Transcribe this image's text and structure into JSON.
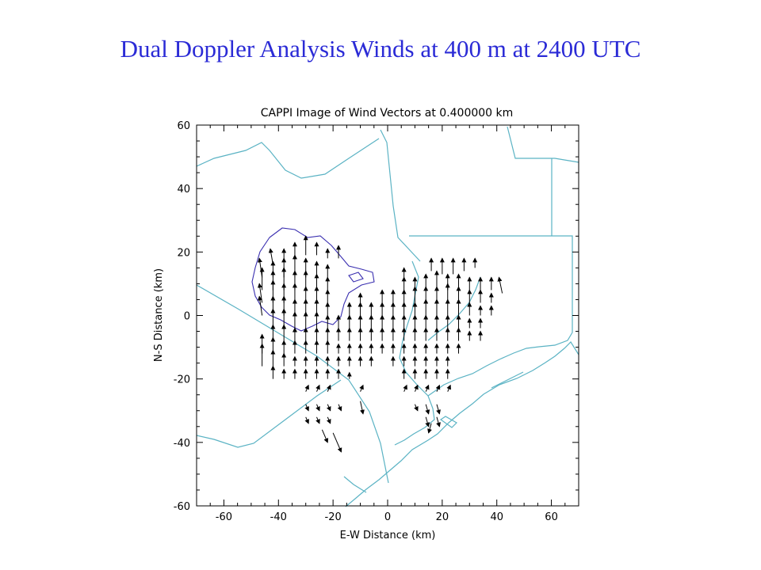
{
  "slide": {
    "title": "Dual Doppler Analysis  Winds at 400 m at 2400 UTC"
  },
  "chart_data": {
    "type": "scatter",
    "title": "CAPPI Image of Wind Vectors at  0.400000 km",
    "xlabel": "E-W Distance (km)",
    "ylabel": "N-S Distance (km)",
    "xlim": [
      -70,
      70
    ],
    "ylim": [
      -60,
      60
    ],
    "xticks": [
      -60,
      -40,
      -20,
      0,
      20,
      40,
      60
    ],
    "yticks": [
      -60,
      -40,
      -20,
      0,
      20,
      40,
      60
    ],
    "xtick_labels": [
      "-60",
      "-40",
      "-20",
      "0",
      "20",
      "40",
      "60"
    ],
    "ytick_labels": [
      "-60",
      "-40",
      "-20",
      "0",
      "20",
      "40",
      "60"
    ],
    "grid": false,
    "vector_color": "#000000",
    "coast_color": "#5bb3c4",
    "outline_color": "#3a2fb0",
    "wind_vectors": [
      {
        "x": -42,
        "y": 16,
        "u": -0.5,
        "v": 2.5
      },
      {
        "x": -38,
        "y": 17,
        "u": 0,
        "v": 2
      },
      {
        "x": -34,
        "y": 18,
        "u": 0,
        "v": 2.5
      },
      {
        "x": -30,
        "y": 19,
        "u": 0,
        "v": 3
      },
      {
        "x": -26,
        "y": 19,
        "u": 0,
        "v": 2
      },
      {
        "x": -22,
        "y": 18,
        "u": 0,
        "v": 1.5
      },
      {
        "x": -18,
        "y": 18,
        "u": 0,
        "v": 2
      },
      {
        "x": -46,
        "y": 12,
        "u": -0.5,
        "v": 3
      },
      {
        "x": -42,
        "y": 12,
        "u": 0,
        "v": 2.5
      },
      {
        "x": -38,
        "y": 12,
        "u": 0,
        "v": 3
      },
      {
        "x": -34,
        "y": 12,
        "u": 0,
        "v": 3.5
      },
      {
        "x": -30,
        "y": 12,
        "u": 0,
        "v": 3
      },
      {
        "x": -26,
        "y": 12,
        "u": 0,
        "v": 2.5
      },
      {
        "x": -22,
        "y": 12,
        "u": 0,
        "v": 2
      },
      {
        "x": 6,
        "y": 12,
        "u": 0,
        "v": 1.5
      },
      {
        "x": 16,
        "y": 14,
        "u": 0,
        "v": 2
      },
      {
        "x": 20,
        "y": 13,
        "u": 0,
        "v": 2.5
      },
      {
        "x": 24,
        "y": 13,
        "u": 0,
        "v": 2.5
      },
      {
        "x": 28,
        "y": 14,
        "u": 0,
        "v": 2
      },
      {
        "x": 32,
        "y": 15,
        "u": 0,
        "v": 1.5
      },
      {
        "x": -46,
        "y": 8,
        "u": 0,
        "v": 3.5
      },
      {
        "x": -42,
        "y": 8,
        "u": 0,
        "v": 3
      },
      {
        "x": -38,
        "y": 8,
        "u": 0,
        "v": 3.5
      },
      {
        "x": -34,
        "y": 8,
        "u": 0,
        "v": 3
      },
      {
        "x": -30,
        "y": 8,
        "u": 0,
        "v": 3
      },
      {
        "x": -26,
        "y": 8,
        "u": 0,
        "v": 2.5
      },
      {
        "x": -22,
        "y": 8,
        "u": 0,
        "v": 2
      },
      {
        "x": 6,
        "y": 8,
        "u": 0,
        "v": 2
      },
      {
        "x": 10,
        "y": 8,
        "u": 0,
        "v": 2
      },
      {
        "x": 14,
        "y": 8,
        "u": 0,
        "v": 2.5
      },
      {
        "x": 18,
        "y": 8,
        "u": 0,
        "v": 3
      },
      {
        "x": 22,
        "y": 8,
        "u": 0,
        "v": 2.5
      },
      {
        "x": 26,
        "y": 8,
        "u": 0,
        "v": 2.5
      },
      {
        "x": 30,
        "y": 8,
        "u": 0,
        "v": 2
      },
      {
        "x": 34,
        "y": 8,
        "u": 0,
        "v": 2
      },
      {
        "x": 38,
        "y": 8,
        "u": 0,
        "v": 2
      },
      {
        "x": 42,
        "y": 7,
        "u": -0.6,
        "v": 2.5
      },
      {
        "x": -46,
        "y": 4,
        "u": -0.5,
        "v": 3
      },
      {
        "x": -42,
        "y": 4,
        "u": 0,
        "v": 3.5
      },
      {
        "x": -38,
        "y": 4,
        "u": 0,
        "v": 3
      },
      {
        "x": -34,
        "y": 4,
        "u": 0,
        "v": 3
      },
      {
        "x": -30,
        "y": 4,
        "u": 0,
        "v": 2.5
      },
      {
        "x": -26,
        "y": 4,
        "u": 0,
        "v": 2.5
      },
      {
        "x": -22,
        "y": 4,
        "u": 0,
        "v": 2
      },
      {
        "x": -10,
        "y": 4,
        "u": 0,
        "v": 1.5
      },
      {
        "x": -2,
        "y": 4,
        "u": 0,
        "v": 2
      },
      {
        "x": 2,
        "y": 4,
        "u": 0,
        "v": 2
      },
      {
        "x": 6,
        "y": 4,
        "u": 0,
        "v": 2
      },
      {
        "x": 10,
        "y": 4,
        "u": 0,
        "v": 2.5
      },
      {
        "x": 14,
        "y": 4,
        "u": 0,
        "v": 2.5
      },
      {
        "x": 18,
        "y": 4,
        "u": 0,
        "v": 2.5
      },
      {
        "x": 22,
        "y": 4,
        "u": 0,
        "v": 3
      },
      {
        "x": 26,
        "y": 4,
        "u": 0,
        "v": 2.5
      },
      {
        "x": 30,
        "y": 4,
        "u": 0,
        "v": 2
      },
      {
        "x": 34,
        "y": 4,
        "u": 0,
        "v": 2
      },
      {
        "x": 38,
        "y": 4,
        "u": 0,
        "v": 1.5
      },
      {
        "x": -46,
        "y": 0,
        "u": -0.5,
        "v": 3
      },
      {
        "x": -42,
        "y": 0,
        "u": 0,
        "v": 3
      },
      {
        "x": -38,
        "y": 0,
        "u": 0,
        "v": 3
      },
      {
        "x": -34,
        "y": 0,
        "u": 0,
        "v": 2.5
      },
      {
        "x": -30,
        "y": 0,
        "u": 0,
        "v": 2.5
      },
      {
        "x": -26,
        "y": 0,
        "u": 0,
        "v": 2.5
      },
      {
        "x": -22,
        "y": 0,
        "u": 0,
        "v": 2
      },
      {
        "x": -14,
        "y": 0,
        "u": 0,
        "v": 2
      },
      {
        "x": -10,
        "y": 0,
        "u": 0,
        "v": 2
      },
      {
        "x": -6,
        "y": 0,
        "u": 0,
        "v": 2
      },
      {
        "x": -2,
        "y": 0,
        "u": 0,
        "v": 2
      },
      {
        "x": 2,
        "y": 0,
        "u": 0,
        "v": 2
      },
      {
        "x": 6,
        "y": 0,
        "u": 0,
        "v": 2
      },
      {
        "x": 10,
        "y": 0,
        "u": 0,
        "v": 2
      },
      {
        "x": 14,
        "y": 0,
        "u": 0,
        "v": 2.5
      },
      {
        "x": 18,
        "y": 0,
        "u": 0,
        "v": 2.5
      },
      {
        "x": 22,
        "y": 0,
        "u": 0,
        "v": 2.5
      },
      {
        "x": 26,
        "y": 0,
        "u": 0,
        "v": 2.5
      },
      {
        "x": 30,
        "y": 0,
        "u": 0,
        "v": 2
      },
      {
        "x": 34,
        "y": 0,
        "u": 0,
        "v": 1.5
      },
      {
        "x": 38,
        "y": 0,
        "u": 0,
        "v": 1.5
      },
      {
        "x": -42,
        "y": -4,
        "u": 0,
        "v": 3
      },
      {
        "x": -38,
        "y": -4,
        "u": 0,
        "v": 3
      },
      {
        "x": -34,
        "y": -4,
        "u": 0,
        "v": 2.5
      },
      {
        "x": -30,
        "y": -4,
        "u": 0,
        "v": 2.5
      },
      {
        "x": -26,
        "y": -4,
        "u": 0,
        "v": 2.5
      },
      {
        "x": -22,
        "y": -4,
        "u": 0,
        "v": 2
      },
      {
        "x": -18,
        "y": -4,
        "u": 0,
        "v": 2
      },
      {
        "x": -14,
        "y": -4,
        "u": 0,
        "v": 2
      },
      {
        "x": -10,
        "y": -4,
        "u": 0,
        "v": 2
      },
      {
        "x": -6,
        "y": -4,
        "u": 0,
        "v": 2
      },
      {
        "x": -2,
        "y": -4,
        "u": 0,
        "v": 2
      },
      {
        "x": 2,
        "y": -4,
        "u": 0,
        "v": 2
      },
      {
        "x": 6,
        "y": -4,
        "u": 0,
        "v": 2
      },
      {
        "x": 10,
        "y": -4,
        "u": 0,
        "v": 2
      },
      {
        "x": 14,
        "y": -4,
        "u": 0,
        "v": 2
      },
      {
        "x": 18,
        "y": -4,
        "u": 0,
        "v": 2
      },
      {
        "x": 22,
        "y": -4,
        "u": 0,
        "v": 2
      },
      {
        "x": 26,
        "y": -4,
        "u": 0,
        "v": 2
      },
      {
        "x": 30,
        "y": -4,
        "u": 0,
        "v": 1.5
      },
      {
        "x": 34,
        "y": -4,
        "u": 0,
        "v": 1.5
      },
      {
        "x": -42,
        "y": -8,
        "u": 0,
        "v": 2.5
      },
      {
        "x": -38,
        "y": -8,
        "u": 0,
        "v": 2.5
      },
      {
        "x": -34,
        "y": -8,
        "u": 0,
        "v": 2
      },
      {
        "x": -30,
        "y": -8,
        "u": 0,
        "v": 2
      },
      {
        "x": -26,
        "y": -8,
        "u": 0,
        "v": 2
      },
      {
        "x": -22,
        "y": -8,
        "u": 0,
        "v": 2
      },
      {
        "x": -18,
        "y": -8,
        "u": 0,
        "v": 2
      },
      {
        "x": -14,
        "y": -8,
        "u": 0,
        "v": 2
      },
      {
        "x": -10,
        "y": -8,
        "u": 0,
        "v": 2
      },
      {
        "x": -6,
        "y": -8,
        "u": 0,
        "v": 2
      },
      {
        "x": -2,
        "y": -8,
        "u": 0,
        "v": 2
      },
      {
        "x": 2,
        "y": -8,
        "u": 0,
        "v": 2
      },
      {
        "x": 6,
        "y": -8,
        "u": 0,
        "v": 2
      },
      {
        "x": 10,
        "y": -8,
        "u": 0,
        "v": 2
      },
      {
        "x": 14,
        "y": -8,
        "u": 0,
        "v": 2
      },
      {
        "x": 18,
        "y": -8,
        "u": 0,
        "v": 2
      },
      {
        "x": 22,
        "y": -8,
        "u": 0,
        "v": 2
      },
      {
        "x": 26,
        "y": -8,
        "u": 0,
        "v": 2
      },
      {
        "x": 30,
        "y": -8,
        "u": 0,
        "v": 1.5
      },
      {
        "x": 34,
        "y": -8,
        "u": 0,
        "v": 1.5
      },
      {
        "x": -46,
        "y": -12,
        "u": 0,
        "v": 3
      },
      {
        "x": -42,
        "y": -12,
        "u": 0,
        "v": 2.5
      },
      {
        "x": -38,
        "y": -12,
        "u": 0,
        "v": 2
      },
      {
        "x": -34,
        "y": -12,
        "u": 0,
        "v": 2
      },
      {
        "x": -30,
        "y": -12,
        "u": 0,
        "v": 2
      },
      {
        "x": -26,
        "y": -12,
        "u": 0,
        "v": 2
      },
      {
        "x": -22,
        "y": -12,
        "u": 0,
        "v": 2
      },
      {
        "x": -18,
        "y": -12,
        "u": 0,
        "v": 1.5
      },
      {
        "x": -14,
        "y": -12,
        "u": 0,
        "v": 1.5
      },
      {
        "x": -10,
        "y": -12,
        "u": 0,
        "v": 1.5
      },
      {
        "x": -6,
        "y": -12,
        "u": 0,
        "v": 1.5
      },
      {
        "x": -2,
        "y": -12,
        "u": 0,
        "v": 1.5
      },
      {
        "x": 2,
        "y": -12,
        "u": 0,
        "v": 1.5
      },
      {
        "x": 6,
        "y": -12,
        "u": 0,
        "v": 1.5
      },
      {
        "x": 10,
        "y": -12,
        "u": 0,
        "v": 1.5
      },
      {
        "x": 14,
        "y": -12,
        "u": 0,
        "v": 1.5
      },
      {
        "x": 18,
        "y": -12,
        "u": 0,
        "v": 1.5
      },
      {
        "x": 22,
        "y": -12,
        "u": 0,
        "v": 1.5
      },
      {
        "x": 26,
        "y": -12,
        "u": 0,
        "v": 1.5
      },
      {
        "x": -46,
        "y": -16,
        "u": 0,
        "v": 3.5
      },
      {
        "x": -42,
        "y": -16,
        "u": 0,
        "v": 2.5
      },
      {
        "x": -38,
        "y": -16,
        "u": 0,
        "v": 2
      },
      {
        "x": -34,
        "y": -16,
        "u": 0,
        "v": 1.5
      },
      {
        "x": -30,
        "y": -16,
        "u": 0,
        "v": 1.5
      },
      {
        "x": -26,
        "y": -16,
        "u": 0,
        "v": 1.5
      },
      {
        "x": -22,
        "y": -16,
        "u": 0,
        "v": 1.5
      },
      {
        "x": -18,
        "y": -16,
        "u": 0,
        "v": 1.5
      },
      {
        "x": -14,
        "y": -16,
        "u": 0,
        "v": 1.5
      },
      {
        "x": -10,
        "y": -16,
        "u": 0,
        "v": 1.5
      },
      {
        "x": -6,
        "y": -16,
        "u": 0,
        "v": 1.5
      },
      {
        "x": 2,
        "y": -16,
        "u": 0,
        "v": 1.5
      },
      {
        "x": 6,
        "y": -16,
        "u": 0,
        "v": 1.5
      },
      {
        "x": 10,
        "y": -16,
        "u": 0,
        "v": 1.5
      },
      {
        "x": 14,
        "y": -16,
        "u": 0,
        "v": 1.5
      },
      {
        "x": 18,
        "y": -16,
        "u": 0,
        "v": 1.5
      },
      {
        "x": 22,
        "y": -16,
        "u": 0,
        "v": 1.5
      },
      {
        "x": -42,
        "y": -20,
        "u": 0,
        "v": 2
      },
      {
        "x": -38,
        "y": -20,
        "u": 0,
        "v": 1.5
      },
      {
        "x": -34,
        "y": -20,
        "u": 0,
        "v": 1.5
      },
      {
        "x": -30,
        "y": -20,
        "u": 0,
        "v": 1.5
      },
      {
        "x": -26,
        "y": -20,
        "u": 0,
        "v": 1.5
      },
      {
        "x": -22,
        "y": -20,
        "u": 0,
        "v": 1.5
      },
      {
        "x": -18,
        "y": -20,
        "u": 0,
        "v": 1.5
      },
      {
        "x": -14,
        "y": -20,
        "u": 0,
        "v": 1
      },
      {
        "x": 6,
        "y": -20,
        "u": 0,
        "v": 1.5
      },
      {
        "x": 10,
        "y": -20,
        "u": 0,
        "v": 1.5
      },
      {
        "x": 14,
        "y": -20,
        "u": 0,
        "v": 1.5
      },
      {
        "x": 18,
        "y": -20,
        "u": 0,
        "v": 1.5
      },
      {
        "x": 22,
        "y": -20,
        "u": 0,
        "v": 1.5
      },
      {
        "x": -30,
        "y": -24,
        "u": 0.5,
        "v": 1
      },
      {
        "x": -26,
        "y": -24,
        "u": 0.5,
        "v": 1
      },
      {
        "x": -22,
        "y": -24,
        "u": 0.5,
        "v": 1
      },
      {
        "x": -10,
        "y": -24,
        "u": 0.5,
        "v": 1
      },
      {
        "x": 6,
        "y": -24,
        "u": 0.5,
        "v": 1
      },
      {
        "x": 10,
        "y": -24,
        "u": 0.5,
        "v": 1
      },
      {
        "x": 14,
        "y": -24,
        "u": 0.5,
        "v": 1
      },
      {
        "x": 18,
        "y": -24,
        "u": 0.5,
        "v": 1
      },
      {
        "x": 22,
        "y": -24,
        "u": 0.5,
        "v": 1
      },
      {
        "x": -30,
        "y": -28,
        "u": 0.5,
        "v": -1
      },
      {
        "x": -26,
        "y": -28,
        "u": 0.5,
        "v": -1
      },
      {
        "x": -22,
        "y": -28,
        "u": 0.5,
        "v": -1
      },
      {
        "x": -18,
        "y": -28,
        "u": 0.5,
        "v": -1
      },
      {
        "x": -10,
        "y": -27,
        "u": 0.5,
        "v": -2
      },
      {
        "x": 10,
        "y": -28,
        "u": 0.5,
        "v": -1
      },
      {
        "x": 14,
        "y": -28,
        "u": 0.5,
        "v": -1.5
      },
      {
        "x": 18,
        "y": -28,
        "u": 0.5,
        "v": -1.5
      },
      {
        "x": -30,
        "y": -32,
        "u": 0.5,
        "v": -1
      },
      {
        "x": -26,
        "y": -32,
        "u": 0.5,
        "v": -1
      },
      {
        "x": -22,
        "y": -32,
        "u": 0.5,
        "v": -1
      },
      {
        "x": 14,
        "y": -32,
        "u": 0.5,
        "v": -1.5
      },
      {
        "x": 18,
        "y": -32,
        "u": 0.5,
        "v": -1.5
      },
      {
        "x": -24,
        "y": -36,
        "u": 1,
        "v": -2
      },
      {
        "x": -20,
        "y": -37,
        "u": 1.5,
        "v": -3
      },
      {
        "x": 16,
        "y": -34,
        "u": -0.5,
        "v": -1.5
      }
    ]
  }
}
